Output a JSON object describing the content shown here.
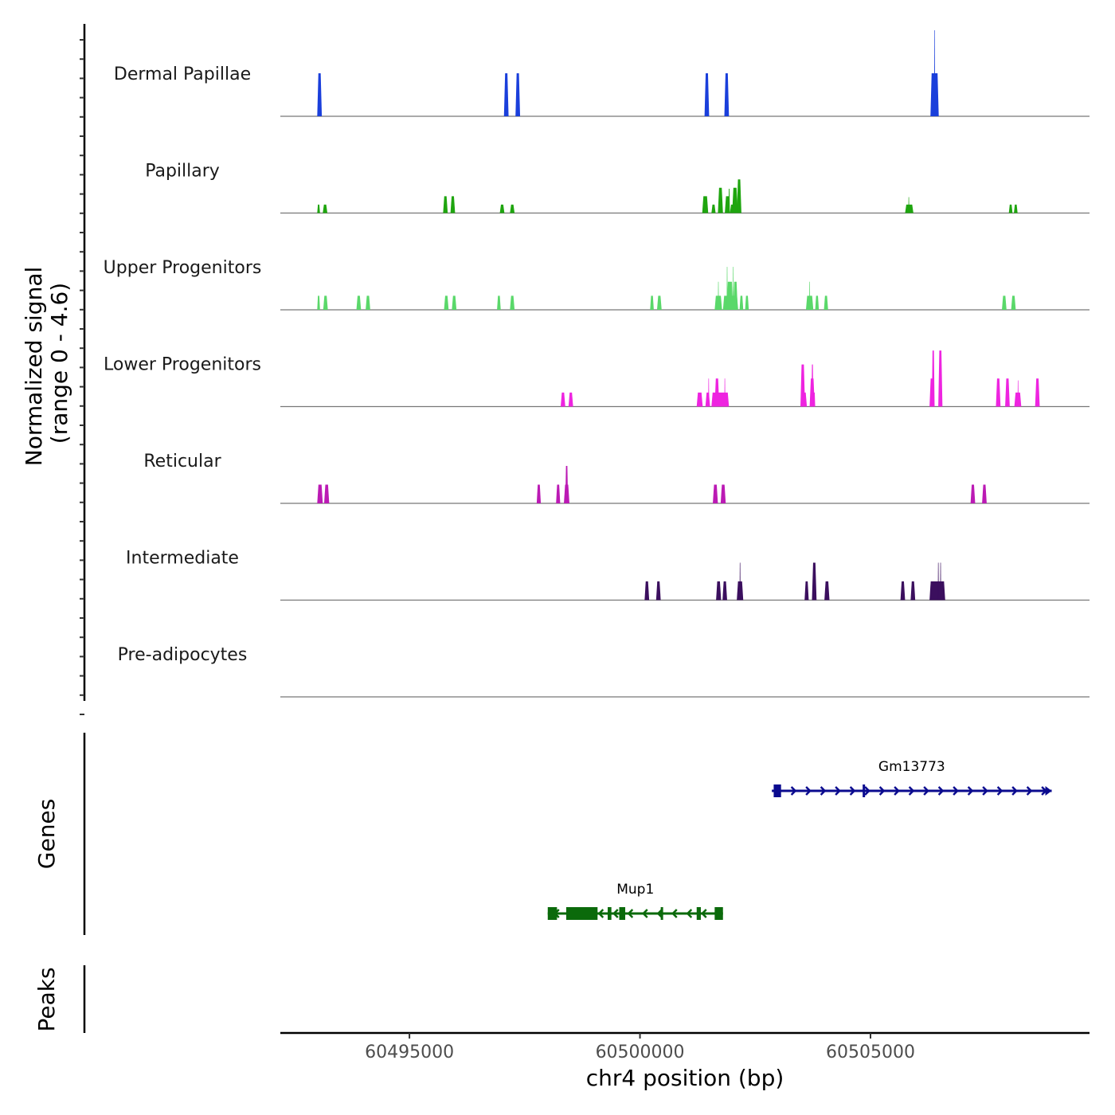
{
  "chart_data": {
    "type": "area",
    "title": "",
    "chromosome": "chr4",
    "xlabel": "chr4 position (bp)",
    "ylabel_line1": "Normalized signal",
    "ylabel_line2": "(range 0 - 4.6)",
    "ylim": [
      0,
      4.6
    ],
    "xlim": [
      60492200,
      60509750
    ],
    "x_ticks": [
      60495000,
      60500000,
      60505000
    ],
    "x_tick_labels": [
      "60495000",
      "60500000",
      "60505000"
    ],
    "y_minor_tick_count": 36,
    "tracks": [
      {
        "name": "Dermal Papillae",
        "color": "#1a3fdb",
        "peaks": [
          {
            "start": 60493000,
            "end": 60493100,
            "value": 2.3
          },
          {
            "start": 60497050,
            "end": 60497150,
            "value": 2.3
          },
          {
            "start": 60497300,
            "end": 60497400,
            "value": 2.3
          },
          {
            "start": 60501400,
            "end": 60501500,
            "value": 2.3
          },
          {
            "start": 60501830,
            "end": 60501930,
            "value": 2.3
          },
          {
            "start": 60506300,
            "end": 60506480,
            "value": 2.3
          },
          {
            "start": 60506380,
            "end": 60506400,
            "value": 4.6
          }
        ]
      },
      {
        "name": "Papillary",
        "color": "#1fa50f",
        "peaks": [
          {
            "start": 60493000,
            "end": 60493060,
            "value": 0.45
          },
          {
            "start": 60493120,
            "end": 60493220,
            "value": 0.45
          },
          {
            "start": 60495730,
            "end": 60495830,
            "value": 0.9
          },
          {
            "start": 60495890,
            "end": 60495990,
            "value": 0.9
          },
          {
            "start": 60496960,
            "end": 60497060,
            "value": 0.45
          },
          {
            "start": 60497180,
            "end": 60497280,
            "value": 0.45
          },
          {
            "start": 60501350,
            "end": 60501480,
            "value": 0.9
          },
          {
            "start": 60501550,
            "end": 60501640,
            "value": 0.45
          },
          {
            "start": 60501690,
            "end": 60501800,
            "value": 1.35
          },
          {
            "start": 60501840,
            "end": 60501950,
            "value": 0.9
          },
          {
            "start": 60501920,
            "end": 60501950,
            "value": 1.3
          },
          {
            "start": 60501950,
            "end": 60502150,
            "value": 0.45
          },
          {
            "start": 60502000,
            "end": 60502120,
            "value": 1.35
          },
          {
            "start": 60502100,
            "end": 60502200,
            "value": 1.8
          },
          {
            "start": 60505750,
            "end": 60505930,
            "value": 0.45
          },
          {
            "start": 60505820,
            "end": 60505840,
            "value": 0.85
          },
          {
            "start": 60508000,
            "end": 60508080,
            "value": 0.45
          },
          {
            "start": 60508110,
            "end": 60508190,
            "value": 0.45
          }
        ]
      },
      {
        "name": "Upper Progenitors",
        "color": "#5ad86a",
        "peaks": [
          {
            "start": 60493000,
            "end": 60493060,
            "value": 0.75
          },
          {
            "start": 60493130,
            "end": 60493230,
            "value": 0.75
          },
          {
            "start": 60493850,
            "end": 60493950,
            "value": 0.75
          },
          {
            "start": 60494050,
            "end": 60494150,
            "value": 0.75
          },
          {
            "start": 60495750,
            "end": 60495850,
            "value": 0.75
          },
          {
            "start": 60495920,
            "end": 60496020,
            "value": 0.75
          },
          {
            "start": 60496900,
            "end": 60496980,
            "value": 0.75
          },
          {
            "start": 60497180,
            "end": 60497280,
            "value": 0.75
          },
          {
            "start": 60500220,
            "end": 60500300,
            "value": 0.75
          },
          {
            "start": 60500370,
            "end": 60500470,
            "value": 0.75
          },
          {
            "start": 60501620,
            "end": 60501780,
            "value": 0.75
          },
          {
            "start": 60501690,
            "end": 60501710,
            "value": 1.5
          },
          {
            "start": 60501800,
            "end": 60502130,
            "value": 0.75
          },
          {
            "start": 60501880,
            "end": 60501900,
            "value": 2.3
          },
          {
            "start": 60501880,
            "end": 60502020,
            "value": 1.5
          },
          {
            "start": 60502010,
            "end": 60502030,
            "value": 2.3
          },
          {
            "start": 60502020,
            "end": 60502120,
            "value": 1.5
          },
          {
            "start": 60502160,
            "end": 60502240,
            "value": 0.75
          },
          {
            "start": 60502280,
            "end": 60502360,
            "value": 0.75
          },
          {
            "start": 60503600,
            "end": 60503760,
            "value": 0.75
          },
          {
            "start": 60503670,
            "end": 60503690,
            "value": 1.5
          },
          {
            "start": 60503800,
            "end": 60503880,
            "value": 0.75
          },
          {
            "start": 60503990,
            "end": 60504080,
            "value": 0.75
          },
          {
            "start": 60507850,
            "end": 60507950,
            "value": 0.75
          },
          {
            "start": 60508050,
            "end": 60508150,
            "value": 0.75
          }
        ]
      },
      {
        "name": "Lower Progenitors",
        "color": "#ee24e0",
        "peaks": [
          {
            "start": 60498280,
            "end": 60498380,
            "value": 0.75
          },
          {
            "start": 60498450,
            "end": 60498550,
            "value": 0.75
          },
          {
            "start": 60501230,
            "end": 60501360,
            "value": 0.75
          },
          {
            "start": 60501420,
            "end": 60501520,
            "value": 0.75
          },
          {
            "start": 60501480,
            "end": 60501500,
            "value": 1.5
          },
          {
            "start": 60501550,
            "end": 60501930,
            "value": 0.75
          },
          {
            "start": 60501620,
            "end": 60501720,
            "value": 1.5
          },
          {
            "start": 60501830,
            "end": 60501850,
            "value": 1.5
          },
          {
            "start": 60503480,
            "end": 60503580,
            "value": 2.25
          },
          {
            "start": 60503520,
            "end": 60503620,
            "value": 0.75
          },
          {
            "start": 60503680,
            "end": 60503790,
            "value": 1.5
          },
          {
            "start": 60503720,
            "end": 60503760,
            "value": 2.25
          },
          {
            "start": 60503760,
            "end": 60503800,
            "value": 0.75
          },
          {
            "start": 60506280,
            "end": 60506380,
            "value": 1.5
          },
          {
            "start": 60506330,
            "end": 60506390,
            "value": 3.0
          },
          {
            "start": 60506470,
            "end": 60506560,
            "value": 3.0
          },
          {
            "start": 60507720,
            "end": 60507820,
            "value": 1.5
          },
          {
            "start": 60507920,
            "end": 60508020,
            "value": 1.5
          },
          {
            "start": 60508120,
            "end": 60508270,
            "value": 0.75
          },
          {
            "start": 60508190,
            "end": 60508210,
            "value": 1.4
          },
          {
            "start": 60508570,
            "end": 60508670,
            "value": 1.5
          }
        ]
      },
      {
        "name": "Reticular",
        "color": "#bb1ab4",
        "peaks": [
          {
            "start": 60493000,
            "end": 60493120,
            "value": 1.0
          },
          {
            "start": 60493150,
            "end": 60493260,
            "value": 1.0
          },
          {
            "start": 60497760,
            "end": 60497850,
            "value": 1.0
          },
          {
            "start": 60498180,
            "end": 60498270,
            "value": 1.0
          },
          {
            "start": 60498350,
            "end": 60498470,
            "value": 1.0
          },
          {
            "start": 60498380,
            "end": 60498440,
            "value": 2.0
          },
          {
            "start": 60501580,
            "end": 60501690,
            "value": 1.0
          },
          {
            "start": 60501750,
            "end": 60501860,
            "value": 1.0
          },
          {
            "start": 60507170,
            "end": 60507270,
            "value": 1.0
          },
          {
            "start": 60507420,
            "end": 60507520,
            "value": 1.0
          }
        ]
      },
      {
        "name": "Intermediate",
        "color": "#3b0f5e",
        "peaks": [
          {
            "start": 60500100,
            "end": 60500200,
            "value": 1.0
          },
          {
            "start": 60500350,
            "end": 60500450,
            "value": 1.0
          },
          {
            "start": 60501650,
            "end": 60501760,
            "value": 1.0
          },
          {
            "start": 60501790,
            "end": 60501890,
            "value": 1.0
          },
          {
            "start": 60502100,
            "end": 60502240,
            "value": 1.0
          },
          {
            "start": 60502160,
            "end": 60502180,
            "value": 2.0
          },
          {
            "start": 60503570,
            "end": 60503660,
            "value": 1.0
          },
          {
            "start": 60503730,
            "end": 60503830,
            "value": 2.0
          },
          {
            "start": 60504000,
            "end": 60504110,
            "value": 1.0
          },
          {
            "start": 60505650,
            "end": 60505750,
            "value": 1.0
          },
          {
            "start": 60505870,
            "end": 60505970,
            "value": 1.0
          },
          {
            "start": 60506280,
            "end": 60506620,
            "value": 1.0
          },
          {
            "start": 60506460,
            "end": 60506480,
            "value": 2.0
          },
          {
            "start": 60506510,
            "end": 60506530,
            "value": 2.0
          }
        ]
      },
      {
        "name": "Pre-adipocytes",
        "color": "#f0e442",
        "peaks": []
      }
    ],
    "genes": [
      {
        "name": "Gm13773",
        "strand": "+",
        "color": "#0b0b8f",
        "start": 60502860,
        "end": 60508930,
        "exons": [
          [
            60502900,
            60503060
          ],
          [
            60504830,
            60504880
          ]
        ]
      },
      {
        "name": "Mup1",
        "strand": "-",
        "color": "#0b6a0b",
        "start": 60498000,
        "end": 60501800,
        "exons": [
          [
            60498000,
            60498200
          ],
          [
            60498400,
            60499080
          ],
          [
            60499300,
            60499380
          ],
          [
            60499550,
            60499680
          ],
          [
            60500450,
            60500500
          ],
          [
            60501230,
            60501320
          ],
          [
            60501620,
            60501800
          ]
        ]
      }
    ],
    "panel_labels": {
      "genes": "Genes",
      "peaks": "Peaks"
    }
  }
}
